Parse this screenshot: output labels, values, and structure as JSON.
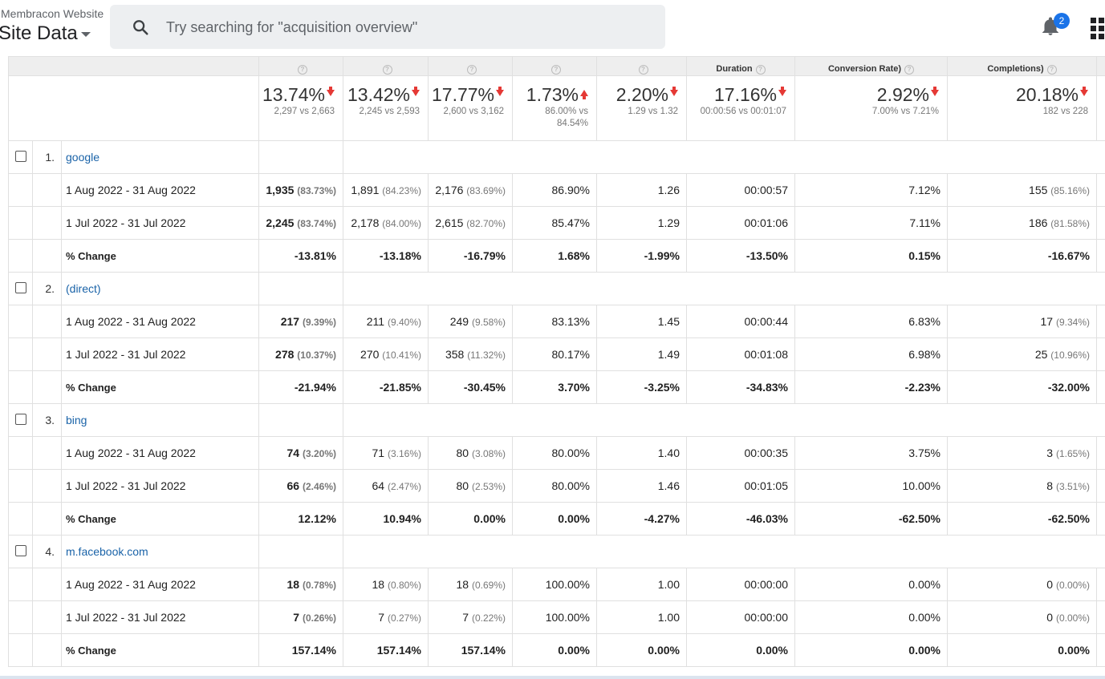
{
  "header": {
    "property_name": "Membracon Website",
    "view_name": "Site Data",
    "search_placeholder": "Try searching for \"acquisition overview\"",
    "notification_count": "2"
  },
  "columns": [
    {
      "label": ""
    },
    {
      "label": ""
    },
    {
      "label": ""
    },
    {
      "label": ""
    },
    {
      "label": ""
    },
    {
      "label": "Duration"
    },
    {
      "label": "Conversion Rate)"
    },
    {
      "label": "Completions)"
    }
  ],
  "summary": [
    {
      "pct": "13.74%",
      "dir": "down",
      "cmp": "2,297 vs 2,663"
    },
    {
      "pct": "13.42%",
      "dir": "down",
      "cmp": "2,245 vs 2,593"
    },
    {
      "pct": "17.77%",
      "dir": "down",
      "cmp": "2,600 vs 3,162"
    },
    {
      "pct": "1.73%",
      "dir": "up",
      "cmp": "86.00% vs 84.54%"
    },
    {
      "pct": "2.20%",
      "dir": "down",
      "cmp": "1.29 vs 1.32"
    },
    {
      "pct": "17.16%",
      "dir": "down",
      "cmp": "00:00:56 vs 00:01:07"
    },
    {
      "pct": "2.92%",
      "dir": "down",
      "cmp": "7.00% vs 7.21%"
    },
    {
      "pct": "20.18%",
      "dir": "down",
      "cmp": "182 vs 228"
    }
  ],
  "groups": [
    {
      "index": "1.",
      "source": "google",
      "rows": [
        {
          "label": "1 Aug 2022 - 31 Aug 2022",
          "cells": [
            {
              "v": "1,935",
              "s": "(83.73%)",
              "bold": true
            },
            {
              "v": "1,891",
              "s": "(84.23%)"
            },
            {
              "v": "2,176",
              "s": "(83.69%)"
            },
            {
              "v": "86.90%"
            },
            {
              "v": "1.26"
            },
            {
              "v": "00:00:57"
            },
            {
              "v": "7.12%"
            },
            {
              "v": "155",
              "s": "(85.16%)"
            }
          ]
        },
        {
          "label": "1 Jul 2022 - 31 Jul 2022",
          "cells": [
            {
              "v": "2,245",
              "s": "(83.74%)",
              "bold": true
            },
            {
              "v": "2,178",
              "s": "(84.00%)"
            },
            {
              "v": "2,615",
              "s": "(82.70%)"
            },
            {
              "v": "85.47%"
            },
            {
              "v": "1.29"
            },
            {
              "v": "00:01:06"
            },
            {
              "v": "7.11%"
            },
            {
              "v": "186",
              "s": "(81.58%)"
            }
          ]
        },
        {
          "label": "% Change",
          "change": true,
          "cells": [
            {
              "v": "-13.81%"
            },
            {
              "v": "-13.18%"
            },
            {
              "v": "-16.79%"
            },
            {
              "v": "1.68%"
            },
            {
              "v": "-1.99%"
            },
            {
              "v": "-13.50%"
            },
            {
              "v": "0.15%"
            },
            {
              "v": "-16.67%"
            }
          ]
        }
      ]
    },
    {
      "index": "2.",
      "source": "(direct)",
      "rows": [
        {
          "label": "1 Aug 2022 - 31 Aug 2022",
          "cells": [
            {
              "v": "217",
              "s": "(9.39%)",
              "bold": true
            },
            {
              "v": "211",
              "s": "(9.40%)"
            },
            {
              "v": "249",
              "s": "(9.58%)"
            },
            {
              "v": "83.13%"
            },
            {
              "v": "1.45"
            },
            {
              "v": "00:00:44"
            },
            {
              "v": "6.83%"
            },
            {
              "v": "17",
              "s": "(9.34%)"
            }
          ]
        },
        {
          "label": "1 Jul 2022 - 31 Jul 2022",
          "cells": [
            {
              "v": "278",
              "s": "(10.37%)",
              "bold": true
            },
            {
              "v": "270",
              "s": "(10.41%)"
            },
            {
              "v": "358",
              "s": "(11.32%)"
            },
            {
              "v": "80.17%"
            },
            {
              "v": "1.49"
            },
            {
              "v": "00:01:08"
            },
            {
              "v": "6.98%"
            },
            {
              "v": "25",
              "s": "(10.96%)"
            }
          ]
        },
        {
          "label": "% Change",
          "change": true,
          "cells": [
            {
              "v": "-21.94%"
            },
            {
              "v": "-21.85%"
            },
            {
              "v": "-30.45%"
            },
            {
              "v": "3.70%"
            },
            {
              "v": "-3.25%"
            },
            {
              "v": "-34.83%"
            },
            {
              "v": "-2.23%"
            },
            {
              "v": "-32.00%"
            }
          ]
        }
      ]
    },
    {
      "index": "3.",
      "source": "bing",
      "rows": [
        {
          "label": "1 Aug 2022 - 31 Aug 2022",
          "cells": [
            {
              "v": "74",
              "s": "(3.20%)",
              "bold": true
            },
            {
              "v": "71",
              "s": "(3.16%)"
            },
            {
              "v": "80",
              "s": "(3.08%)"
            },
            {
              "v": "80.00%"
            },
            {
              "v": "1.40"
            },
            {
              "v": "00:00:35"
            },
            {
              "v": "3.75%"
            },
            {
              "v": "3",
              "s": "(1.65%)"
            }
          ]
        },
        {
          "label": "1 Jul 2022 - 31 Jul 2022",
          "cells": [
            {
              "v": "66",
              "s": "(2.46%)",
              "bold": true
            },
            {
              "v": "64",
              "s": "(2.47%)"
            },
            {
              "v": "80",
              "s": "(2.53%)"
            },
            {
              "v": "80.00%"
            },
            {
              "v": "1.46"
            },
            {
              "v": "00:01:05"
            },
            {
              "v": "10.00%"
            },
            {
              "v": "8",
              "s": "(3.51%)"
            }
          ]
        },
        {
          "label": "% Change",
          "change": true,
          "cells": [
            {
              "v": "12.12%"
            },
            {
              "v": "10.94%"
            },
            {
              "v": "0.00%"
            },
            {
              "v": "0.00%"
            },
            {
              "v": "-4.27%"
            },
            {
              "v": "-46.03%"
            },
            {
              "v": "-62.50%"
            },
            {
              "v": "-62.50%"
            }
          ]
        }
      ]
    },
    {
      "index": "4.",
      "source": "m.facebook.com",
      "rows": [
        {
          "label": "1 Aug 2022 - 31 Aug 2022",
          "cells": [
            {
              "v": "18",
              "s": "(0.78%)",
              "bold": true
            },
            {
              "v": "18",
              "s": "(0.80%)"
            },
            {
              "v": "18",
              "s": "(0.69%)"
            },
            {
              "v": "100.00%"
            },
            {
              "v": "1.00"
            },
            {
              "v": "00:00:00"
            },
            {
              "v": "0.00%"
            },
            {
              "v": "0",
              "s": "(0.00%)"
            }
          ]
        },
        {
          "label": "1 Jul 2022 - 31 Jul 2022",
          "cells": [
            {
              "v": "7",
              "s": "(0.26%)",
              "bold": true
            },
            {
              "v": "7",
              "s": "(0.27%)"
            },
            {
              "v": "7",
              "s": "(0.22%)"
            },
            {
              "v": "100.00%"
            },
            {
              "v": "1.00"
            },
            {
              "v": "00:00:00"
            },
            {
              "v": "0.00%"
            },
            {
              "v": "0",
              "s": "(0.00%)"
            }
          ]
        },
        {
          "label": "% Change",
          "change": true,
          "cells": [
            {
              "v": "157.14%"
            },
            {
              "v": "157.14%"
            },
            {
              "v": "157.14%"
            },
            {
              "v": "0.00%"
            },
            {
              "v": "0.00%"
            },
            {
              "v": "0.00%"
            },
            {
              "v": "0.00%"
            },
            {
              "v": "0.00%"
            }
          ]
        }
      ]
    }
  ],
  "colors": {
    "link": "#1a63a8",
    "arrow": "#e53935",
    "badge": "#1a73e8"
  }
}
